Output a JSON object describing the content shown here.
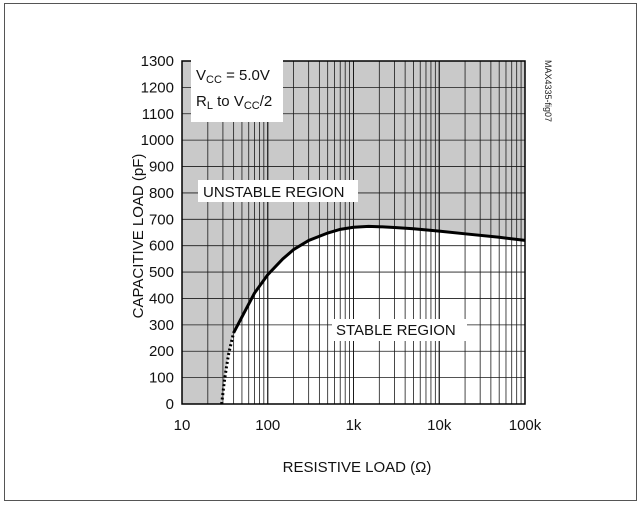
{
  "chart_data": {
    "type": "area",
    "x_scale": "log",
    "xlim": [
      10,
      100000
    ],
    "ylim": [
      0,
      1300
    ],
    "grid": true,
    "xlabel": "RESISTIVE LOAD (Ω)",
    "ylabel": "CAPACITIVE LOAD (pF)",
    "x_tick_labels": [
      "10",
      "100",
      "1k",
      "10k",
      "100k"
    ],
    "x_ticks": [
      10,
      100,
      1000,
      10000,
      100000
    ],
    "y_ticks": [
      0,
      100,
      200,
      300,
      400,
      500,
      600,
      700,
      800,
      900,
      1000,
      1100,
      1200,
      1300
    ],
    "y_tick_labels": [
      "0",
      "100",
      "200",
      "300",
      "400",
      "500",
      "600",
      "700",
      "800",
      "900",
      "1000",
      "1100",
      "1200",
      "1300"
    ],
    "conditions": {
      "vcc_symbol": "V",
      "vcc_sub": "CC",
      "vcc_value": " = 5.0V",
      "rl_symbol": "R",
      "rl_sub": "L",
      "rl_to": " to V",
      "rl_to_sub": "CC",
      "rl_to_end": "/2"
    },
    "regions": {
      "unstable": "UNSTABLE REGION",
      "stable": "STABLE REGION"
    },
    "figure_id": "MAX4335-fig07",
    "boundary_dotted": {
      "x": [
        29,
        31,
        33,
        35,
        38,
        40
      ],
      "y": [
        0,
        80,
        140,
        190,
        240,
        270
      ]
    },
    "boundary_solid": {
      "x": [
        40,
        50,
        70,
        100,
        150,
        200,
        300,
        500,
        700,
        1000,
        1500,
        2000,
        3000,
        5000,
        10000,
        20000,
        50000,
        100000
      ],
      "y": [
        270,
        330,
        420,
        490,
        550,
        585,
        620,
        648,
        662,
        670,
        673,
        672,
        669,
        664,
        655,
        645,
        632,
        620
      ]
    },
    "colors": {
      "unstable_fill": "#c9c9c9",
      "grid": "#1a1a1a",
      "curve": "#000000"
    }
  }
}
